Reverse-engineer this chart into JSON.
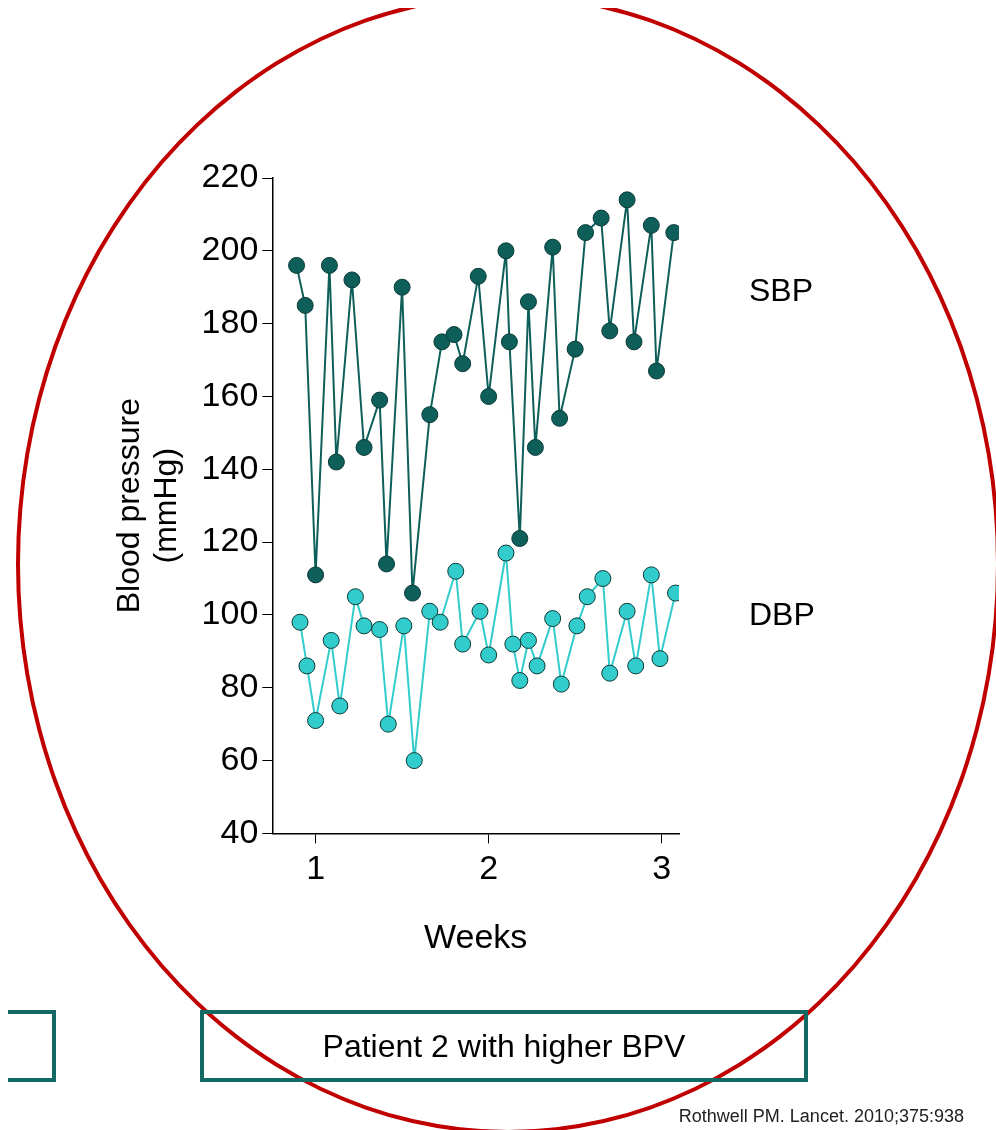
{
  "chart_data": {
    "type": "line",
    "xlabel": "Weeks",
    "ylabel": "Blood pressure\n(mmHg)",
    "xlim": [
      0.75,
      3.1
    ],
    "xticks": [
      1,
      2,
      3
    ],
    "ylim": [
      40,
      220
    ],
    "yticks": [
      40,
      60,
      80,
      100,
      120,
      140,
      160,
      180,
      200,
      220
    ],
    "grid": false,
    "legend": false,
    "marker": "circle",
    "line_style": "solid",
    "annotations": [
      "Patient 2 with higher BPV",
      "Rothwell PM. Lancet. 2010;375:938"
    ],
    "series": [
      {
        "name": "SBP",
        "color": "#0e5f5a",
        "x": [
          0.89,
          0.94,
          1.0,
          1.08,
          1.12,
          1.21,
          1.28,
          1.37,
          1.41,
          1.5,
          1.56,
          1.66,
          1.73,
          1.8,
          1.85,
          1.94,
          2.0,
          2.1,
          2.12,
          2.18,
          2.23,
          2.27,
          2.37,
          2.41,
          2.5,
          2.56,
          2.65,
          2.7,
          2.8,
          2.84,
          2.94,
          2.97,
          3.07
        ],
        "values": [
          196,
          185,
          111,
          196,
          142,
          192,
          146,
          159,
          114,
          190,
          106,
          155,
          175,
          177,
          169,
          193,
          160,
          200,
          175,
          121,
          186,
          146,
          201,
          154,
          173,
          205,
          209,
          178,
          214,
          175,
          207,
          167,
          205
        ]
      },
      {
        "name": "DBP",
        "color": "#33cccc",
        "x": [
          0.91,
          0.95,
          1.0,
          1.09,
          1.14,
          1.23,
          1.28,
          1.37,
          1.42,
          1.51,
          1.57,
          1.66,
          1.72,
          1.81,
          1.85,
          1.95,
          2.0,
          2.1,
          2.14,
          2.18,
          2.23,
          2.28,
          2.37,
          2.42,
          2.51,
          2.57,
          2.66,
          2.7,
          2.8,
          2.85,
          2.94,
          2.99,
          3.08
        ],
        "values": [
          98,
          86,
          71,
          93,
          75,
          105,
          97,
          96,
          70,
          97,
          60,
          101,
          98,
          112,
          92,
          101,
          89,
          117,
          92,
          82,
          93,
          86,
          99,
          81,
          97,
          105,
          110,
          84,
          101,
          86,
          111,
          88,
          106
        ]
      }
    ]
  }
}
